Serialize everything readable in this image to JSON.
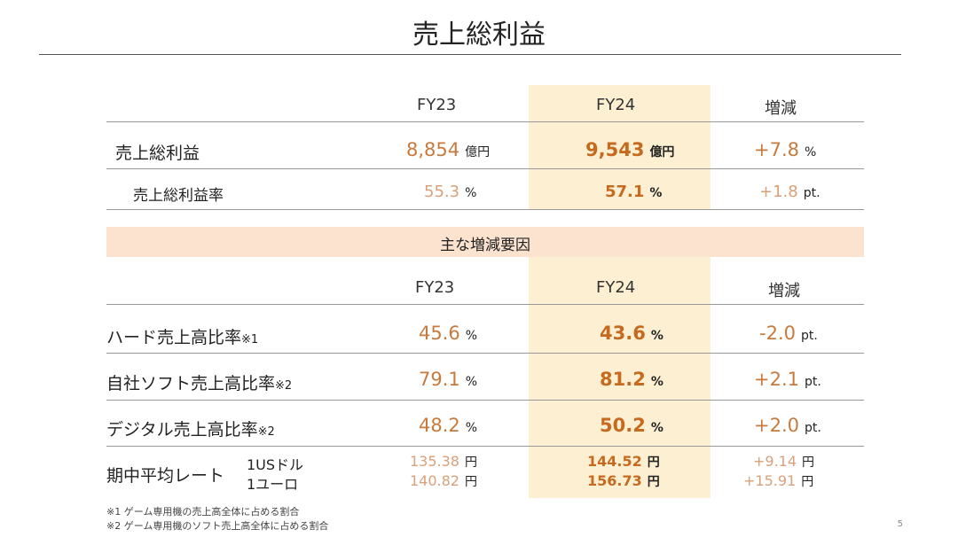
{
  "title": "売上総利益",
  "top_table": {
    "headers": [
      "FY23",
      "FY24",
      "増減"
    ],
    "rows": [
      {
        "label": "売上総利益",
        "fy23": "8,854",
        "fy23_unit": "億円",
        "fy24": "9,543",
        "fy24_unit": "億円",
        "diff": "+7.8",
        "diff_unit": "%"
      },
      {
        "label": "売上総利益率",
        "fy23": "55.3",
        "fy23_unit": "%",
        "fy24": "57.1",
        "fy24_unit": "%",
        "diff": "+1.8",
        "diff_unit": "pt."
      }
    ]
  },
  "factors": {
    "section_title": "主な増減要因",
    "headers": [
      "FY23",
      "FY24",
      "増減"
    ],
    "rows": [
      {
        "label": "ハード売上高比率",
        "note": "※1",
        "fy23": "45.6",
        "fy23_unit": "%",
        "fy24": "43.6",
        "fy24_unit": "%",
        "diff": "-2.0",
        "diff_unit": "pt."
      },
      {
        "label": "自社ソフト売上高比率",
        "note": "※2",
        "fy23": "79.1",
        "fy23_unit": "%",
        "fy24": "81.2",
        "fy24_unit": "%",
        "diff": "+2.1",
        "diff_unit": "pt."
      },
      {
        "label": "デジタル売上高比率",
        "note": "※2",
        "fy23": "48.2",
        "fy23_unit": "%",
        "fy24": "50.2",
        "fy24_unit": "%",
        "diff": "+2.0",
        "diff_unit": "pt."
      }
    ],
    "rate": {
      "label": "期中平均レート",
      "items": [
        {
          "currency": "1USドル",
          "fy23": "135.38",
          "fy24": "144.52",
          "diff": "+9.14",
          "unit": "円"
        },
        {
          "currency": "1ユーロ",
          "fy23": "140.82",
          "fy24": "156.73",
          "diff": "+15.91",
          "unit": "円"
        }
      ]
    }
  },
  "footnotes": [
    "※1 ゲーム専用機の売上高全体に占める割合",
    "※2 ゲーム専用機のソフト売上高全体に占める割合"
  ],
  "page_number": "5",
  "colors": {
    "highlight_column": "#fdefd2",
    "section_band": "#fbe3cf",
    "accent_orange": "#c56a1f"
  }
}
